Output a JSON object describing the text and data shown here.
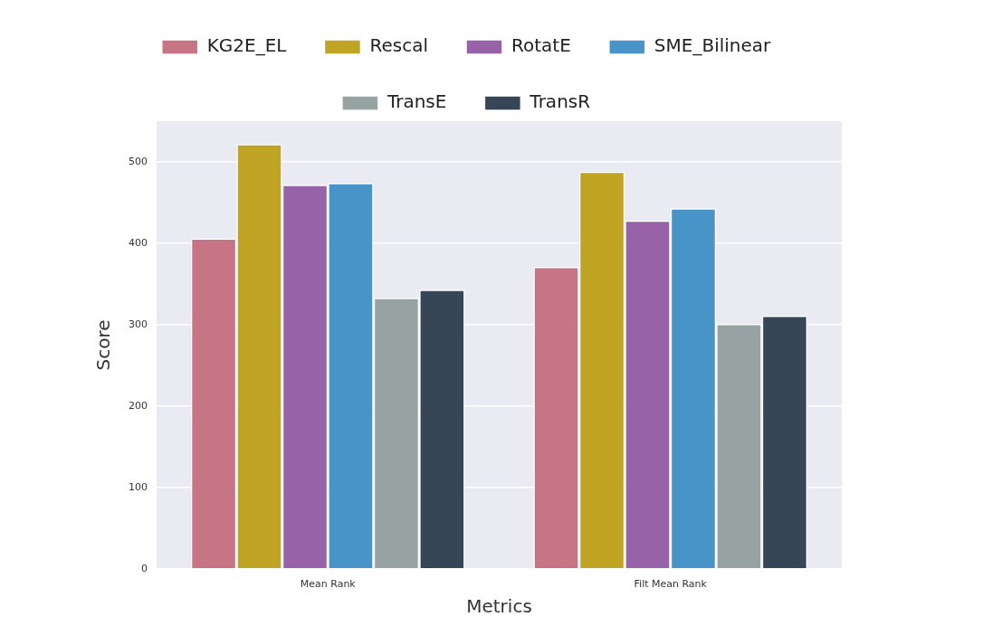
{
  "chart_data": {
    "type": "bar",
    "xlabel": "Metrics",
    "ylabel": "Score",
    "categories": [
      "Mean Rank",
      "Filt Mean Rank"
    ],
    "series": [
      {
        "name": "KG2E_EL",
        "color": "#c77585",
        "values": [
          406,
          371
        ]
      },
      {
        "name": "Rescal",
        "color": "#bfa523",
        "values": [
          522,
          488
        ]
      },
      {
        "name": "RotatE",
        "color": "#9862a9",
        "values": [
          472,
          428
        ]
      },
      {
        "name": "SME_Bilinear",
        "color": "#4893c8",
        "values": [
          474,
          443
        ]
      },
      {
        "name": "TransE",
        "color": "#96a3a2",
        "values": [
          333,
          301
        ]
      },
      {
        "name": "TransR",
        "color": "#374657",
        "values": [
          343,
          311
        ]
      }
    ],
    "ylim": [
      0,
      550
    ],
    "yticks": [
      0,
      100,
      200,
      300,
      400,
      500
    ],
    "grid": "y",
    "legend": "top"
  }
}
